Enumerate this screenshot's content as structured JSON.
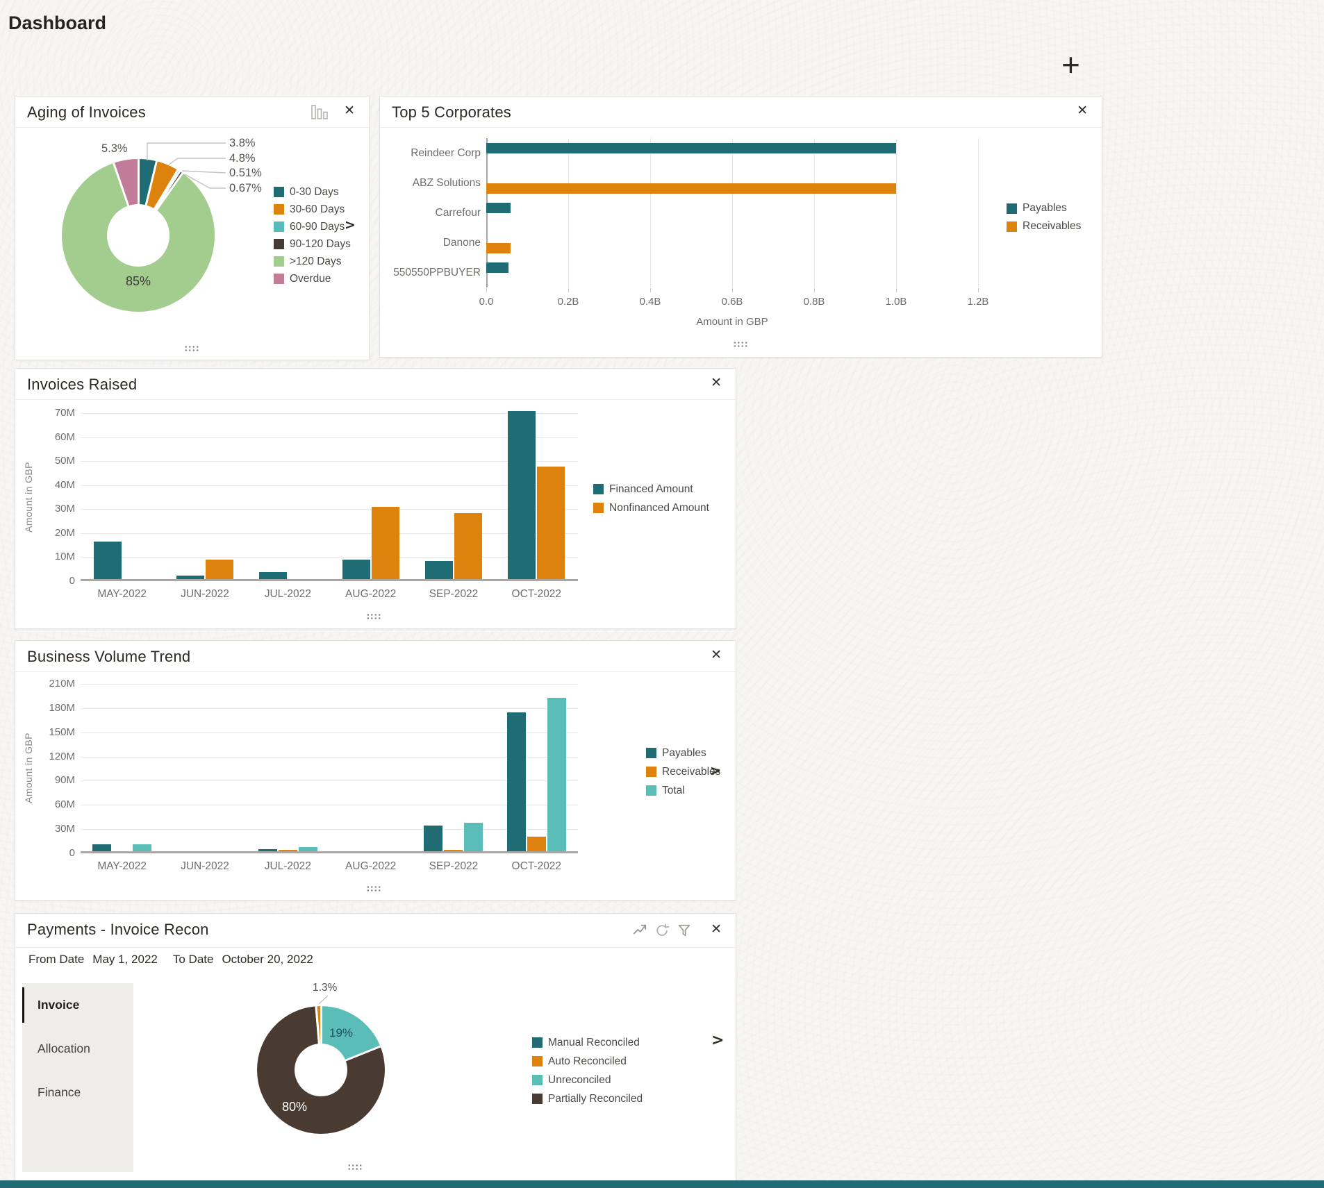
{
  "page": {
    "title": "Dashboard"
  },
  "icons": {
    "add": "+",
    "close": "✕",
    "chevron": ">"
  },
  "colors": {
    "teal": "#1f6c75",
    "orange": "#de820e",
    "cyan": "#5abdb8",
    "green": "#a3cd8f",
    "mauve": "#c17d98",
    "dark_brown": "#453b35",
    "recon_brown": "#493b32",
    "accent_strip": "#1f6c75"
  },
  "payments_panel": {
    "from_label": "From Date",
    "from_value": "May 1, 2022",
    "to_label": "To Date",
    "to_value": "October 20, 2022",
    "tabs": [
      "Invoice",
      "Allocation",
      "Finance"
    ]
  },
  "chart_data": [
    {
      "id": "aging",
      "type": "pie",
      "donut": true,
      "title": "Aging of Invoices",
      "legend_position": "right",
      "slices": [
        {
          "label": "0-30 Days",
          "value": 3.8,
          "display": "3.8%",
          "color": "#1f6c75"
        },
        {
          "label": "30-60 Days",
          "value": 4.8,
          "display": "4.8%",
          "color": "#de820e"
        },
        {
          "label": "60-90 Days",
          "value": 0.51,
          "display": "0.51%",
          "color": "#57bdbb"
        },
        {
          "label": "90-120 Days",
          "value": 0.67,
          "display": "0.67%",
          "color": "#453b35"
        },
        {
          "label": ">120 Days",
          "value": 85,
          "display": "85%",
          "color": "#a3cd8f"
        },
        {
          "label": "Overdue",
          "value": 5.3,
          "display": "5.3%",
          "color": "#c17d98"
        }
      ]
    },
    {
      "id": "top5",
      "type": "bar",
      "orientation": "horizontal",
      "title": "Top 5 Corporates",
      "categories": [
        "Reindeer Corp",
        "ABZ Solutions",
        "Carrefour",
        "Danone",
        "550550PPBUYER"
      ],
      "series": [
        {
          "name": "Payables",
          "color": "#1f6c75",
          "values": [
            1.0,
            0,
            0.06,
            0,
            0.055
          ]
        },
        {
          "name": "Receivables",
          "color": "#de820e",
          "values": [
            0,
            1.0,
            0,
            0.06,
            0
          ]
        }
      ],
      "xlabel": "Amount in GBP",
      "unit": "billions GBP",
      "xticks": [
        "0.0",
        "0.2B",
        "0.4B",
        "0.6B",
        "0.8B",
        "1.0B",
        "1.2B"
      ],
      "xlim": [
        0,
        1.2
      ],
      "grid": true,
      "legend_position": "right"
    },
    {
      "id": "invoices_raised",
      "type": "bar",
      "title": "Invoices Raised",
      "categories": [
        "MAY-2022",
        "JUN-2022",
        "JUL-2022",
        "AUG-2022",
        "SEP-2022",
        "OCT-2022"
      ],
      "series": [
        {
          "name": "Financed Amount",
          "color": "#1f6c75",
          "values": [
            15.5,
            1.5,
            3,
            8,
            7.5,
            70
          ]
        },
        {
          "name": "Nonfinanced Amount",
          "color": "#de820e",
          "values": [
            0,
            8,
            0,
            30,
            27.5,
            47
          ]
        }
      ],
      "ylabel": "Amount in GBP",
      "unit": "millions GBP",
      "yticks": [
        "70M",
        "60M",
        "50M",
        "40M",
        "30M",
        "20M",
        "10M",
        "0"
      ],
      "ylim": [
        0,
        70
      ],
      "grid": true,
      "legend_position": "right"
    },
    {
      "id": "business_volume",
      "type": "bar",
      "title": "Business Volume Trend",
      "categories": [
        "MAY-2022",
        "JUN-2022",
        "JUL-2022",
        "AUG-2022",
        "SEP-2022",
        "OCT-2022"
      ],
      "series": [
        {
          "name": "Payables",
          "color": "#1f6c75",
          "values": [
            9,
            0,
            3,
            0,
            32,
            172
          ]
        },
        {
          "name": "Receivables",
          "color": "#de820e",
          "values": [
            0,
            0,
            2,
            0,
            2,
            18
          ]
        },
        {
          "name": "Total",
          "color": "#5abdb8",
          "values": [
            9,
            0,
            5,
            0,
            35,
            190
          ]
        }
      ],
      "ylabel": "Amount in GBP",
      "unit": "millions GBP",
      "yticks": [
        "210M",
        "180M",
        "150M",
        "120M",
        "90M",
        "60M",
        "30M",
        "0"
      ],
      "ylim": [
        0,
        210
      ],
      "grid": true,
      "legend_position": "right"
    },
    {
      "id": "payments_recon",
      "type": "pie",
      "donut": true,
      "title": "Payments - Invoice Recon",
      "legend_position": "right",
      "slices": [
        {
          "label": "Manual Reconciled",
          "value": 0,
          "display": "",
          "color": "#1f6c75"
        },
        {
          "label": "Auto Reconciled",
          "value": 1.3,
          "display": "1.3%",
          "color": "#de820e"
        },
        {
          "label": "Unreconciled",
          "value": 19,
          "display": "19%",
          "color": "#5abdb8"
        },
        {
          "label": "Partially Reconciled",
          "value": 80,
          "display": "80%",
          "color": "#493b32"
        }
      ]
    }
  ]
}
